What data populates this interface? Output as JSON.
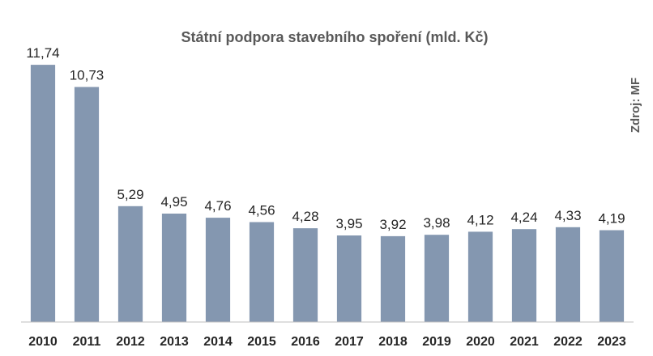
{
  "chart_data": {
    "type": "bar",
    "title": "Státní podpora stavebního spoření  (mld. Kč)",
    "source_note": "Zdroj: MF",
    "categories": [
      "2010",
      "2011",
      "2012",
      "2013",
      "2014",
      "2015",
      "2016",
      "2017",
      "2018",
      "2019",
      "2020",
      "2021",
      "2022",
      "2023"
    ],
    "values": [
      11.74,
      10.73,
      5.29,
      4.95,
      4.76,
      4.56,
      4.28,
      3.95,
      3.92,
      3.98,
      4.12,
      4.24,
      4.33,
      4.19
    ],
    "data_labels": [
      "11,74",
      "10,73",
      "5,29",
      "4,95",
      "4,76",
      "4,56",
      "4,28",
      "3,95",
      "3,92",
      "3,98",
      "4,12",
      "4,24",
      "4,33",
      "4,19"
    ],
    "xlabel": "",
    "ylabel": "",
    "ylim": [
      0,
      13
    ],
    "grid": false,
    "legend": "none",
    "colors": {
      "bar": "#8497b0",
      "axis": "#bfbfbf"
    }
  }
}
